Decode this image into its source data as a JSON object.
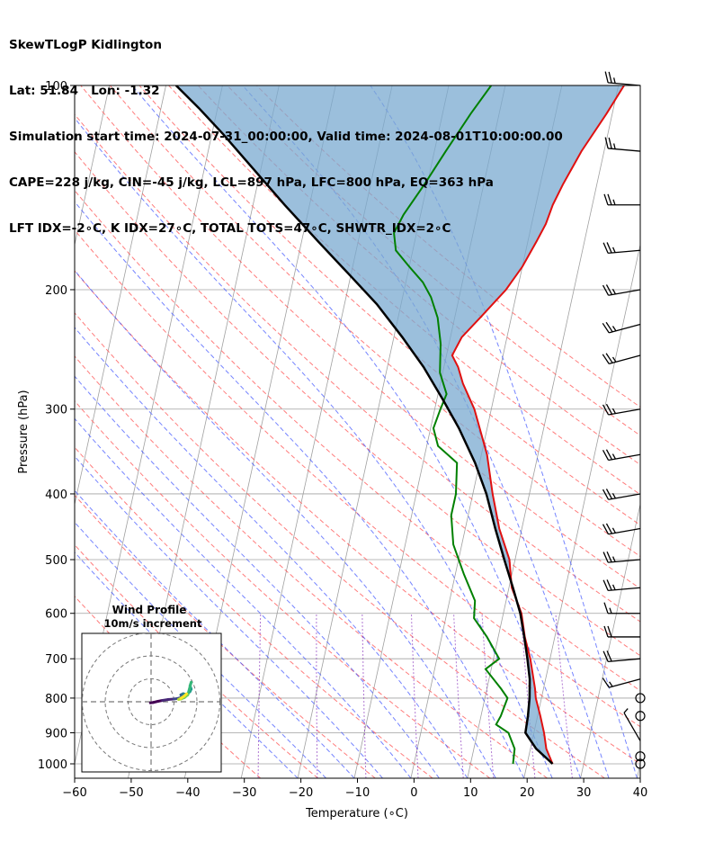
{
  "header": {
    "title": "SkewTLogP Kidlington",
    "location": "Lat: 51.84   Lon: -1.32",
    "times": "Simulation start time: 2024-07-31_00:00:00, Valid time: 2024-08-01T10:00:00.00",
    "params": "CAPE=228 j/kg, CIN=-45 j/kg, LCL=897 hPa, LFC=800 hPa, EQ=363 hPa",
    "indices": "LFT IDX=-2∘C, K IDX=27∘C, TOTAL TOTS=47∘C, SHWTR_IDX=2∘C"
  },
  "chart_data": {
    "type": "line",
    "xlabel": "Temperature (∘C)",
    "ylabel": "Pressure (hPa)",
    "xlim": [
      -60,
      40
    ],
    "ylim": [
      1050,
      100
    ],
    "yscale": "log",
    "x_ticks": [
      -60,
      -50,
      -40,
      -30,
      -20,
      -10,
      0,
      10,
      20,
      30,
      40
    ],
    "x_tick_labels": [
      "−60",
      "−50",
      "−40",
      "−30",
      "−20",
      "−10",
      "0",
      "10",
      "20",
      "30",
      "40"
    ],
    "y_ticks": [
      100,
      200,
      300,
      400,
      500,
      600,
      700,
      800,
      900,
      1000
    ],
    "grid": true,
    "colors": {
      "temperature": "#e01010",
      "dewpoint": "#008000",
      "parcel": "#000000",
      "cape_fill": "#e88a8a",
      "cin_fill": "#7aaad0",
      "dry_adiabat": "#ff5050",
      "moist_adiabat": "#3a50ff",
      "mixing_ratio": "#9040c0",
      "isotherm": "#a0a0a0"
    },
    "series": [
      {
        "name": "temperature",
        "points": [
          [
            24.5,
            1000
          ],
          [
            22.8,
            950
          ],
          [
            21.8,
            900
          ],
          [
            20.5,
            850
          ],
          [
            19.0,
            800
          ],
          [
            18.5,
            775
          ],
          [
            16.5,
            700
          ],
          [
            14.7,
            650
          ],
          [
            13.2,
            600
          ],
          [
            10.5,
            550
          ],
          [
            9.0,
            500
          ],
          [
            6.0,
            450
          ],
          [
            3.5,
            400
          ],
          [
            1.0,
            350
          ],
          [
            -3.0,
            300
          ],
          [
            -6.0,
            275
          ],
          [
            -7.5,
            260
          ],
          [
            -9.0,
            250
          ],
          [
            -8.0,
            235
          ],
          [
            -5.5,
            220
          ],
          [
            -2.0,
            200
          ],
          [
            0.0,
            185
          ],
          [
            1.5,
            170
          ],
          [
            2.5,
            160
          ],
          [
            3.0,
            150
          ],
          [
            4.0,
            140
          ],
          [
            6.0,
            125
          ],
          [
            9.0,
            110
          ],
          [
            11.0,
            100
          ]
        ]
      },
      {
        "name": "dewpoint",
        "points": [
          [
            17.5,
            1000
          ],
          [
            17.2,
            950
          ],
          [
            15.5,
            900
          ],
          [
            13.0,
            875
          ],
          [
            13.5,
            850
          ],
          [
            14.0,
            800
          ],
          [
            12.5,
            775
          ],
          [
            9.0,
            725
          ],
          [
            11.0,
            700
          ],
          [
            8.0,
            650
          ],
          [
            5.0,
            610
          ],
          [
            4.5,
            575
          ],
          [
            1.5,
            525
          ],
          [
            -1.5,
            475
          ],
          [
            -3.0,
            430
          ],
          [
            -3.0,
            400
          ],
          [
            -4.0,
            360
          ],
          [
            -8.0,
            340
          ],
          [
            -9.5,
            320
          ],
          [
            -9.0,
            300
          ],
          [
            -8.5,
            285
          ],
          [
            -10.5,
            265
          ],
          [
            -11.5,
            240
          ],
          [
            -13.0,
            220
          ],
          [
            -15.0,
            205
          ],
          [
            -17.0,
            195
          ],
          [
            -20.0,
            185
          ],
          [
            -23.0,
            175
          ],
          [
            -24.0,
            165
          ],
          [
            -23.0,
            155
          ],
          [
            -20.5,
            140
          ],
          [
            -18.0,
            125
          ],
          [
            -15.0,
            110
          ],
          [
            -12.5,
            100
          ]
        ]
      },
      {
        "name": "parcel",
        "points": [
          [
            24.5,
            1000
          ],
          [
            21.0,
            950
          ],
          [
            18.5,
            900
          ],
          [
            18.3,
            850
          ],
          [
            17.9,
            800
          ],
          [
            17.2,
            750
          ],
          [
            16.0,
            700
          ],
          [
            14.6,
            650
          ],
          [
            13.0,
            600
          ],
          [
            10.7,
            550
          ],
          [
            8.1,
            500
          ],
          [
            5.3,
            450
          ],
          [
            2.4,
            400
          ],
          [
            -0.8,
            360
          ],
          [
            -5.0,
            320
          ],
          [
            -9.0,
            290
          ],
          [
            -13.6,
            260
          ],
          [
            -18.5,
            235
          ],
          [
            -24.3,
            210
          ],
          [
            -30.3,
            190
          ],
          [
            -37.0,
            170
          ],
          [
            -44.4,
            150
          ],
          [
            -52.5,
            130
          ],
          [
            -58.0,
            118
          ],
          [
            -63.3,
            108
          ],
          [
            -68.2,
            100
          ]
        ]
      }
    ],
    "dewpoint_low": [
      [
        17.0,
        1000
      ],
      [
        17.5,
        960
      ]
    ],
    "wind_barbs": [
      {
        "p": 100,
        "speed": 25,
        "dir": 275
      },
      {
        "p": 125,
        "speed": 25,
        "dir": 275
      },
      {
        "p": 150,
        "speed": 25,
        "dir": 270
      },
      {
        "p": 175,
        "speed": 25,
        "dir": 265
      },
      {
        "p": 200,
        "speed": 25,
        "dir": 260
      },
      {
        "p": 225,
        "speed": 25,
        "dir": 255
      },
      {
        "p": 250,
        "speed": 25,
        "dir": 255
      },
      {
        "p": 300,
        "speed": 25,
        "dir": 260
      },
      {
        "p": 350,
        "speed": 25,
        "dir": 260
      },
      {
        "p": 400,
        "speed": 25,
        "dir": 260
      },
      {
        "p": 450,
        "speed": 25,
        "dir": 260
      },
      {
        "p": 500,
        "speed": 25,
        "dir": 265
      },
      {
        "p": 550,
        "speed": 25,
        "dir": 265
      },
      {
        "p": 600,
        "speed": 15,
        "dir": 270
      },
      {
        "p": 650,
        "speed": 20,
        "dir": 270
      },
      {
        "p": 700,
        "speed": 20,
        "dir": 265
      },
      {
        "p": 750,
        "speed": 15,
        "dir": 255
      },
      {
        "p": 800,
        "speed": 0,
        "dir": 0
      },
      {
        "p": 850,
        "speed": 0,
        "dir": 0
      },
      {
        "p": 925,
        "speed": 5,
        "dir": 330
      },
      {
        "p": 975,
        "speed": 0,
        "dir": 0
      },
      {
        "p": 1000,
        "speed": 0,
        "dir": 0
      }
    ],
    "hodograph": {
      "title": "Wind Profile",
      "subtitle": "10m/s increment",
      "rings_ms": [
        10,
        20,
        30
      ],
      "points_ms": [
        [
          -0.3,
          -0.5
        ],
        [
          1.0,
          -0.3
        ],
        [
          3.0,
          0.2
        ],
        [
          5.0,
          0.6
        ],
        [
          7.5,
          1.0
        ],
        [
          10.0,
          1.2
        ],
        [
          12.0,
          1.5
        ],
        [
          13.5,
          2.0
        ],
        [
          13.0,
          3.0
        ],
        [
          14.0,
          3.5
        ],
        [
          15.0,
          3.2
        ],
        [
          16.0,
          3.5
        ],
        [
          17.0,
          4.5
        ],
        [
          17.5,
          5.5
        ],
        [
          17.0,
          7.0
        ],
        [
          17.5,
          8.5
        ],
        [
          16.0,
          3.0
        ],
        [
          14.5,
          1.8
        ],
        [
          13.0,
          1.2
        ],
        [
          12.0,
          1.0
        ],
        [
          13.0,
          1.5
        ],
        [
          14.5,
          2.5
        ],
        [
          15.5,
          3.5
        ]
      ]
    }
  }
}
